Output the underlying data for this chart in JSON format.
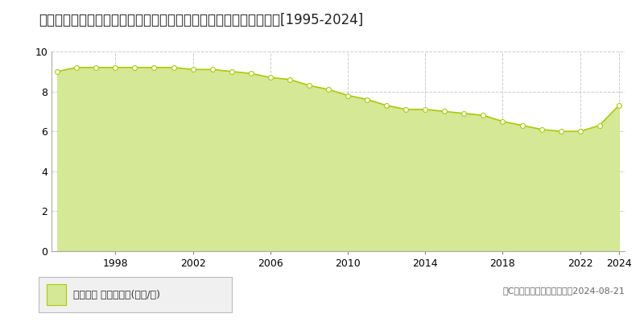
{
  "title": "北海道中川郡幕別町札内中央町３３０番１７　地価公示　地価推移[1995-2024]",
  "years": [
    1995,
    1996,
    1997,
    1998,
    1999,
    2000,
    2001,
    2002,
    2003,
    2004,
    2005,
    2006,
    2007,
    2008,
    2009,
    2010,
    2011,
    2012,
    2013,
    2014,
    2015,
    2016,
    2017,
    2018,
    2019,
    2020,
    2021,
    2022,
    2023,
    2024
  ],
  "values": [
    9.0,
    9.2,
    9.2,
    9.2,
    9.2,
    9.2,
    9.2,
    9.1,
    9.1,
    9.0,
    8.9,
    8.7,
    8.6,
    8.3,
    8.1,
    7.8,
    7.6,
    7.3,
    7.1,
    7.1,
    7.0,
    6.9,
    6.8,
    6.5,
    6.3,
    6.1,
    6.0,
    6.0,
    6.3,
    7.3
  ],
  "line_color": "#aacc00",
  "fill_color": "#d4e896",
  "marker_color": "#ffffff",
  "marker_edge_color": "#aacc00",
  "ylim": [
    0,
    10
  ],
  "yticks": [
    0,
    2,
    4,
    6,
    8,
    10
  ],
  "xticks": [
    1998,
    2002,
    2006,
    2010,
    2014,
    2018,
    2022,
    2024
  ],
  "grid_color": "#cccccc",
  "background_color": "#ffffff",
  "plot_bg_color": "#ffffff",
  "legend_label": "地価公示 平均坪単価(万円/坪)",
  "copyright_text": "（C）土地価格ドットコム　2024-08-21",
  "title_fontsize": 12,
  "legend_fontsize": 9,
  "copyright_fontsize": 8,
  "tick_fontsize": 9
}
